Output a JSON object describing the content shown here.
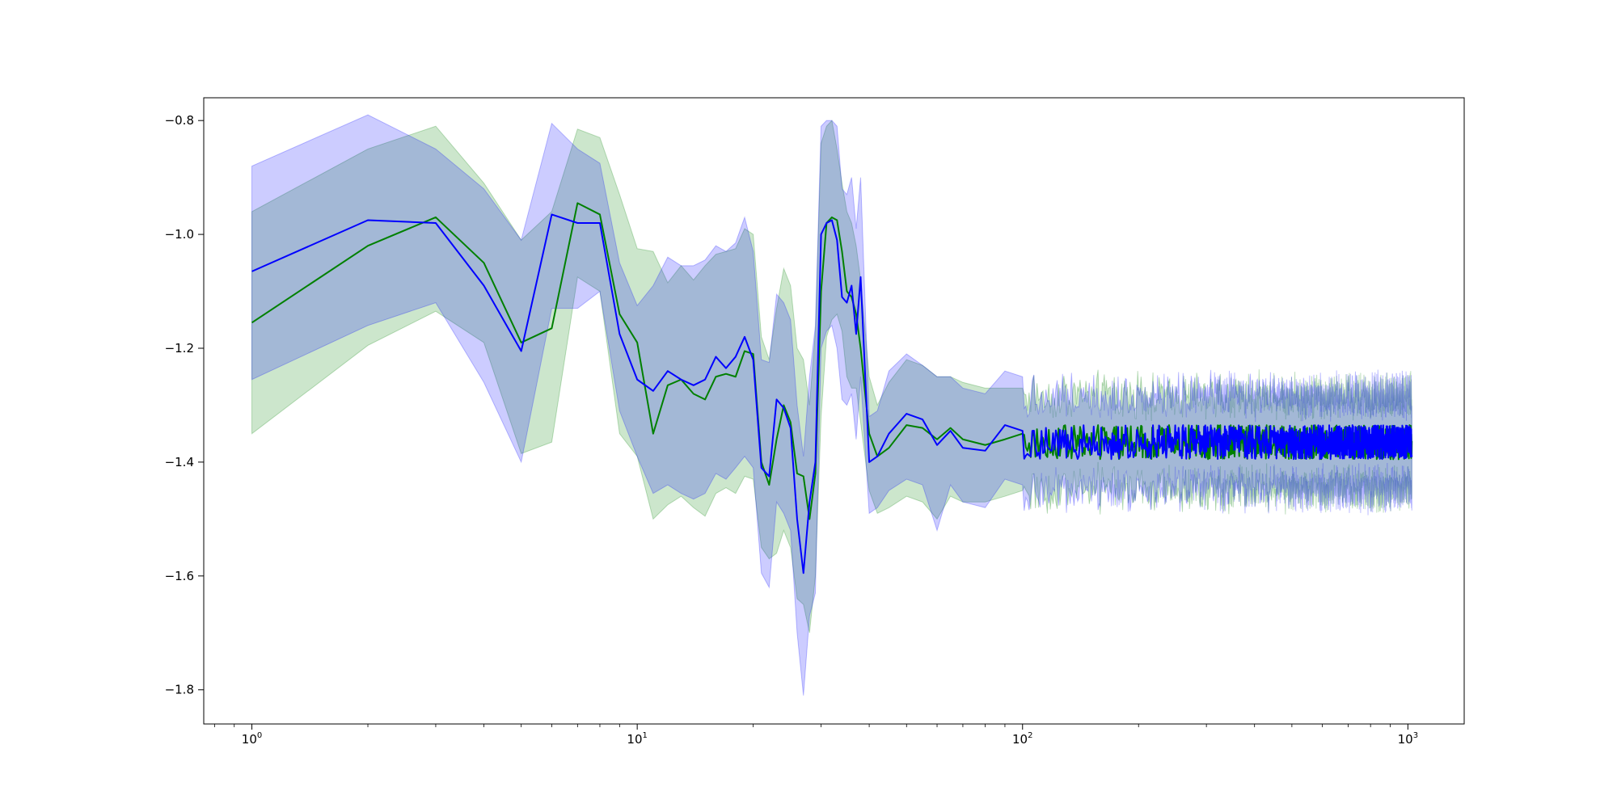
{
  "chart_data": {
    "type": "line",
    "xscale": "log",
    "xlim": [
      0.75,
      1400
    ],
    "ylim": [
      -1.86,
      -0.76
    ],
    "grid": false,
    "legend": "none",
    "xticks": [
      {
        "value": 1,
        "base": "10",
        "exp": "0"
      },
      {
        "value": 10,
        "base": "10",
        "exp": "1"
      },
      {
        "value": 100,
        "base": "10",
        "exp": "2"
      },
      {
        "value": 1000,
        "base": "10",
        "exp": "3"
      }
    ],
    "yticks": [
      {
        "value": -0.8,
        "label": "−0.8"
      },
      {
        "value": -1.0,
        "label": "−1.0"
      },
      {
        "value": -1.2,
        "label": "−1.2"
      },
      {
        "value": -1.4,
        "label": "−1.4"
      },
      {
        "value": -1.6,
        "label": "−1.6"
      },
      {
        "value": -1.8,
        "label": "−1.8"
      }
    ],
    "series": [
      {
        "color": "#008000",
        "band_color": "#008000",
        "x": [
          1,
          2,
          3,
          4,
          5,
          6,
          7,
          8,
          9,
          10,
          11,
          12,
          13,
          14,
          15,
          16,
          17,
          18,
          19,
          20,
          21,
          22,
          23,
          24,
          25,
          26,
          27,
          28,
          29,
          30,
          31,
          32,
          33,
          34,
          35,
          36,
          37,
          38,
          40,
          42,
          45,
          50,
          55,
          60,
          65,
          70,
          80,
          90,
          100
        ],
        "y": [
          -1.155,
          -1.02,
          -0.97,
          -1.05,
          -1.19,
          -1.165,
          -0.945,
          -0.965,
          -1.14,
          -1.19,
          -1.35,
          -1.265,
          -1.255,
          -1.28,
          -1.29,
          -1.25,
          -1.245,
          -1.25,
          -1.205,
          -1.21,
          -1.4,
          -1.44,
          -1.36,
          -1.3,
          -1.33,
          -1.42,
          -1.425,
          -1.5,
          -1.42,
          -1.1,
          -0.98,
          -0.97,
          -0.975,
          -1.03,
          -1.1,
          -1.11,
          -1.14,
          -1.2,
          -1.35,
          -1.39,
          -1.375,
          -1.335,
          -1.34,
          -1.36,
          -1.34,
          -1.36,
          -1.37,
          -1.36,
          -1.35
        ],
        "upper": [
          -0.96,
          -0.85,
          -0.81,
          -0.91,
          -1.01,
          -0.96,
          -0.815,
          -0.83,
          -0.93,
          -1.025,
          -1.03,
          -1.085,
          -1.055,
          -1.08,
          -1.055,
          -1.035,
          -1.03,
          -1.025,
          -0.99,
          -1.0,
          -1.18,
          -1.22,
          -1.13,
          -1.06,
          -1.09,
          -1.2,
          -1.22,
          -1.3,
          -1.17,
          -0.84,
          -0.81,
          -0.8,
          -0.85,
          -0.91,
          -0.96,
          -0.98,
          -1.02,
          -1.08,
          -1.25,
          -1.3,
          -1.26,
          -1.22,
          -1.23,
          -1.25,
          -1.25,
          -1.26,
          -1.27,
          -1.27,
          -1.27
        ],
        "lower": [
          -1.35,
          -1.195,
          -1.135,
          -1.19,
          -1.385,
          -1.365,
          -1.075,
          -1.1,
          -1.35,
          -1.39,
          -1.5,
          -1.475,
          -1.46,
          -1.48,
          -1.495,
          -1.455,
          -1.445,
          -1.455,
          -1.425,
          -1.43,
          -1.55,
          -1.57,
          -1.56,
          -1.52,
          -1.55,
          -1.64,
          -1.65,
          -1.7,
          -1.6,
          -1.32,
          -1.18,
          -1.15,
          -1.14,
          -1.17,
          -1.25,
          -1.27,
          -1.27,
          -1.33,
          -1.45,
          -1.49,
          -1.48,
          -1.46,
          -1.47,
          -1.5,
          -1.46,
          -1.47,
          -1.47,
          -1.46,
          -1.45
        ]
      },
      {
        "color": "#0000ff",
        "band_color": "#0000ff",
        "x": [
          1,
          2,
          3,
          4,
          5,
          6,
          7,
          8,
          9,
          10,
          11,
          12,
          13,
          14,
          15,
          16,
          17,
          18,
          19,
          20,
          21,
          22,
          23,
          24,
          25,
          26,
          27,
          28,
          29,
          30,
          31,
          32,
          33,
          34,
          35,
          36,
          37,
          38,
          40,
          42,
          45,
          50,
          55,
          60,
          65,
          70,
          80,
          90,
          100
        ],
        "y": [
          -1.065,
          -0.975,
          -0.98,
          -1.09,
          -1.205,
          -0.965,
          -0.98,
          -0.98,
          -1.175,
          -1.255,
          -1.275,
          -1.24,
          -1.255,
          -1.265,
          -1.255,
          -1.215,
          -1.235,
          -1.215,
          -1.18,
          -1.22,
          -1.41,
          -1.425,
          -1.29,
          -1.305,
          -1.34,
          -1.5,
          -1.595,
          -1.47,
          -1.4,
          -1.0,
          -0.98,
          -0.975,
          -1.01,
          -1.11,
          -1.12,
          -1.09,
          -1.175,
          -1.075,
          -1.4,
          -1.39,
          -1.35,
          -1.315,
          -1.325,
          -1.37,
          -1.345,
          -1.375,
          -1.38,
          -1.335,
          -1.345
        ],
        "upper": [
          -0.88,
          -0.79,
          -0.85,
          -0.92,
          -1.01,
          -0.805,
          -0.85,
          -0.875,
          -1.05,
          -1.125,
          -1.09,
          -1.04,
          -1.055,
          -1.055,
          -1.045,
          -1.02,
          -1.03,
          -1.015,
          -0.97,
          -1.03,
          -1.22,
          -1.225,
          -1.105,
          -1.12,
          -1.15,
          -1.3,
          -1.39,
          -1.25,
          -1.16,
          -0.81,
          -0.8,
          -0.8,
          -0.81,
          -0.92,
          -0.93,
          -0.9,
          -0.99,
          -0.9,
          -1.32,
          -1.31,
          -1.24,
          -1.21,
          -1.23,
          -1.25,
          -1.25,
          -1.27,
          -1.28,
          -1.24,
          -1.25
        ],
        "lower": [
          -1.255,
          -1.16,
          -1.12,
          -1.26,
          -1.4,
          -1.13,
          -1.13,
          -1.1,
          -1.31,
          -1.39,
          -1.455,
          -1.44,
          -1.455,
          -1.465,
          -1.455,
          -1.42,
          -1.43,
          -1.41,
          -1.39,
          -1.41,
          -1.595,
          -1.62,
          -1.47,
          -1.49,
          -1.52,
          -1.7,
          -1.81,
          -1.67,
          -1.63,
          -1.2,
          -1.17,
          -1.16,
          -1.2,
          -1.29,
          -1.3,
          -1.28,
          -1.36,
          -1.25,
          -1.49,
          -1.48,
          -1.45,
          -1.43,
          -1.44,
          -1.52,
          -1.44,
          -1.47,
          -1.48,
          -1.43,
          -1.44
        ]
      }
    ],
    "noise_tail": {
      "x_start": 100,
      "x_end": 1024,
      "center": -1.365,
      "line_jitter": 0.03,
      "band_halfwidth": 0.075,
      "band_jitter": 0.035
    }
  }
}
